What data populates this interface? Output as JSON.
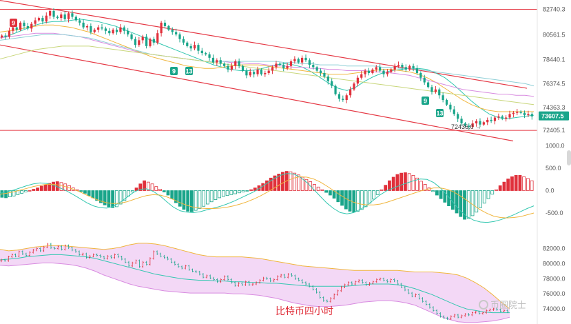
{
  "caption": "比特币四小时",
  "watermark": "币圈院士",
  "colors": {
    "up": "#e0303b",
    "down": "#1aa58a",
    "channel": "#e53945",
    "ma_short": "#33c7b0",
    "ma_mid": "#f0b53c",
    "ma_long": "#d88be0",
    "ma_xlong": "#8ecfd6",
    "ma_yellowgreen": "#c8d67a",
    "boll_fill": "#f3d8f6",
    "boll_upper": "#f0b53c",
    "boll_lower": "#d88be0",
    "boll_mid": "#33c7b0",
    "price_tag_bg": "#1aa58a",
    "td_marker": "#1aa58a"
  },
  "price_axis": {
    "ticks": [
      "82740.3",
      "80561.5",
      "78440.1",
      "76374.5",
      "74363.3",
      "72405.1"
    ],
    "current_price": "73607.5",
    "low_annotation": "72436.0 →"
  },
  "macd_axis": {
    "ticks": [
      "1000.0",
      "500.0",
      "0.0",
      "-500.0"
    ]
  },
  "boll_axis": {
    "ticks": [
      "82000.0",
      "80000.0",
      "78000.0",
      "76000.0",
      "74000.0"
    ]
  },
  "td_markers": [
    "9",
    "9",
    "13",
    "9",
    "13"
  ],
  "chart_data": [
    {
      "type": "candlestick",
      "panel": "price",
      "ylim": [
        72000,
        83300
      ],
      "horizontal_levels": [
        82740.3,
        72405.1
      ],
      "channel": {
        "upper_start": 83500,
        "upper_end": 76000,
        "lower_start": 79700,
        "lower_end": 71500
      },
      "close": [
        80500,
        80400,
        80900,
        81200,
        81000,
        81600,
        81300,
        81100,
        81500,
        81800,
        82000,
        81700,
        82200,
        82600,
        82100,
        82000,
        82300,
        81900,
        82400,
        82100,
        81800,
        81600,
        81200,
        81300,
        80800,
        81000,
        81200,
        81100,
        80900,
        80700,
        81000,
        80800,
        81200,
        80900,
        80600,
        80200,
        79700,
        80100,
        80400,
        79600,
        80200,
        79900,
        80700,
        81600,
        81300,
        81000,
        80800,
        80600,
        80200,
        79900,
        79600,
        79400,
        79700,
        79200,
        79000,
        78900,
        78600,
        78200,
        78400,
        78100,
        77900,
        77600,
        77900,
        78300,
        77900,
        77500,
        77100,
        77400,
        77200,
        77600,
        77200,
        77300,
        77500,
        77800,
        78100,
        78000,
        77700,
        77900,
        78300,
        78500,
        78200,
        78600,
        78400,
        78000,
        77800,
        77500,
        77300,
        77000,
        76600,
        76200,
        75500,
        75100,
        75000,
        75400,
        75900,
        76400,
        76900,
        77200,
        77500,
        77300,
        77600,
        77800,
        77500,
        77200,
        77400,
        77600,
        77900,
        78000,
        77800,
        77600,
        77900,
        77700,
        77300,
        76900,
        76500,
        76100,
        75700,
        75900,
        75400,
        75000,
        74600,
        74200,
        73800,
        73400,
        73000,
        72800,
        72700,
        73000,
        73200,
        72900,
        73100,
        73300,
        73200,
        73500,
        73600,
        73400,
        73500,
        73800,
        73900,
        74000,
        73900,
        73700,
        73800,
        73600
      ],
      "ma": {
        "short": [
          80300,
          80500,
          80800,
          81100,
          81400,
          81600,
          81700,
          81700,
          81800,
          81900,
          81800,
          81700,
          81500,
          81300,
          81000,
          80700,
          80400,
          80100,
          79800,
          79500,
          79200,
          78900,
          78600,
          78300,
          78000,
          77800,
          77600,
          77500,
          77500,
          77600,
          77800,
          78000,
          78100,
          78000,
          77800,
          77400,
          76900,
          76400,
          76000,
          75800,
          76100,
          76600,
          77000,
          77300,
          77500,
          77600,
          77700,
          77700,
          77600,
          77300,
          76900,
          76300,
          75600,
          74900,
          74300,
          73800,
          73500,
          73400,
          73500,
          73600,
          73700
        ],
        "mid": [
          80800,
          80900,
          81000,
          81200,
          81300,
          81400,
          81400,
          81300,
          81200,
          81000,
          80800,
          80500,
          80200,
          79900,
          79600,
          79300,
          79000,
          78700,
          78500,
          78300,
          78100,
          77900,
          77800,
          77700,
          77700,
          77800,
          77900,
          78000,
          78000,
          78000,
          77900,
          77800,
          77700,
          77600,
          77500,
          77400,
          77300,
          77200,
          77200,
          77200,
          77300,
          77400,
          77500,
          77600,
          77600,
          77500,
          77400,
          77200,
          76900,
          76500,
          76000,
          75500,
          75000,
          74600,
          74300,
          74100,
          74000,
          74000,
          74000,
          74000,
          74000
        ],
        "long": [
          80300,
          80400,
          80500,
          80600,
          80700,
          80700,
          80700,
          80600,
          80500,
          80400,
          80200,
          80000,
          79800,
          79600,
          79400,
          79200,
          79000,
          78900,
          78800,
          78700,
          78600,
          78500,
          78400,
          78300,
          78300,
          78300,
          78200,
          78200,
          78100,
          78100,
          78000,
          77900,
          77900,
          77800,
          77800,
          77700,
          77700,
          77600,
          77600,
          77500,
          77500,
          77500,
          77400,
          77400,
          77300,
          77200,
          77100,
          76900,
          76700,
          76500,
          76300,
          76100,
          75900,
          75800,
          75700,
          75600,
          75500,
          75500,
          75400,
          75400,
          75300
        ],
        "xlong": [
          80100,
          80200,
          80300,
          80400,
          80500,
          80600,
          80600,
          80600,
          80500,
          80400,
          80300,
          80100,
          79900,
          79700,
          79500,
          79300,
          79100,
          78900,
          78800,
          78700,
          78600,
          78500,
          78400,
          78300,
          78300,
          78300,
          78300,
          78300,
          78300,
          78300,
          78300,
          78300,
          78200,
          78200,
          78100,
          78100,
          78000,
          78000,
          78000,
          77900,
          77900,
          77900,
          77900,
          77800,
          77800,
          77700,
          77700,
          77600,
          77500,
          77400,
          77300,
          77200,
          77100,
          77000,
          76900,
          76800,
          76700,
          76600,
          76500,
          76400,
          76200
        ],
        "yellowgreen": [
          78500,
          78700,
          78900,
          79100,
          79300,
          79400,
          79500,
          79600,
          79600,
          79600,
          79600,
          79500,
          79400,
          79300,
          79200,
          79100,
          79000,
          78900,
          78800,
          78700,
          78600,
          78500,
          78400,
          78300,
          78200,
          78100,
          78000,
          77900,
          77800,
          77700,
          77600,
          77500,
          77400,
          77300,
          77200,
          77100,
          77000,
          76900,
          76800,
          76700,
          76600,
          76500,
          76400,
          76300,
          76200,
          76100,
          76000,
          75900,
          75800,
          75700,
          75600,
          75500,
          75400,
          75300,
          75200,
          75100,
          75000,
          74900,
          74800,
          74700,
          74600
        ]
      }
    },
    {
      "type": "bar",
      "panel": "macd",
      "ylim": [
        -900,
        1100
      ],
      "histogram": [
        -150,
        -160,
        -140,
        -120,
        -90,
        -60,
        -30,
        0,
        30,
        60,
        100,
        130,
        160,
        190,
        200,
        180,
        150,
        110,
        60,
        20,
        -20,
        -60,
        -110,
        -160,
        -220,
        -270,
        -320,
        -360,
        -380,
        -360,
        -300,
        -220,
        -120,
        -30,
        60,
        150,
        220,
        190,
        150,
        90,
        30,
        -30,
        -100,
        -180,
        -270,
        -350,
        -420,
        -460,
        -470,
        -440,
        -400,
        -350,
        -300,
        -250,
        -200,
        -160,
        -130,
        -110,
        -90,
        -70,
        -50,
        -30,
        -10,
        20,
        60,
        110,
        160,
        220,
        280,
        330,
        370,
        410,
        430,
        420,
        390,
        350,
        300,
        250,
        200,
        140,
        80,
        20,
        -40,
        -100,
        -170,
        -250,
        -330,
        -410,
        -460,
        -480,
        -460,
        -420,
        -360,
        -280,
        -190,
        -90,
        20,
        120,
        220,
        300,
        360,
        390,
        400,
        380,
        340,
        280,
        210,
        140,
        60,
        -20,
        -100,
        -180,
        -260,
        -340,
        -420,
        -500,
        -580,
        -640,
        -620,
        -560,
        -480,
        -380,
        -280,
        -180,
        -80,
        20,
        110,
        190,
        260,
        310,
        340,
        340,
        310,
        270,
        220
      ],
      "dif": [
        -60,
        -30,
        10,
        60,
        110,
        150,
        170,
        160,
        120,
        60,
        -10,
        -90,
        -180,
        -270,
        -340,
        -380,
        -390,
        -350,
        -260,
        -150,
        -40,
        30,
        40,
        -20,
        -120,
        -250,
        -370,
        -450,
        -480,
        -490,
        -470,
        -430,
        -390,
        -350,
        -300,
        -240,
        -170,
        -100,
        -30,
        60,
        160,
        260,
        340,
        380,
        370,
        300,
        180,
        30,
        -130,
        -280,
        -400,
        -490,
        -520,
        -490,
        -420,
        -330,
        -210,
        -90,
        0,
        60,
        120,
        170,
        220,
        260,
        250,
        180,
        60,
        -100,
        -280,
        -450,
        -580,
        -660,
        -700,
        -710,
        -690,
        -650,
        -600,
        -540,
        -470,
        -400,
        -340
      ],
      "dea": [
        -80,
        -60,
        -30,
        10,
        50,
        90,
        120,
        140,
        140,
        120,
        80,
        30,
        -30,
        -100,
        -170,
        -230,
        -270,
        -290,
        -280,
        -250,
        -200,
        -150,
        -110,
        -90,
        -100,
        -140,
        -200,
        -270,
        -330,
        -370,
        -390,
        -400,
        -400,
        -390,
        -370,
        -340,
        -300,
        -250,
        -190,
        -120,
        -40,
        50,
        140,
        220,
        280,
        310,
        300,
        260,
        190,
        100,
        0,
        -100,
        -190,
        -260,
        -300,
        -320,
        -320,
        -300,
        -260,
        -210,
        -160,
        -110,
        -60,
        -10,
        30,
        60,
        60,
        30,
        -30,
        -120,
        -220,
        -330,
        -430,
        -510,
        -570,
        -600,
        -610,
        -600,
        -580,
        -540,
        -500
      ]
    },
    {
      "type": "area",
      "panel": "boll",
      "ylim": [
        72000,
        83700
      ],
      "upper": [
        81900,
        81700,
        81800,
        82000,
        82200,
        82300,
        82400,
        82400,
        82300,
        82200,
        82100,
        82000,
        81900,
        82000,
        82200,
        82500,
        82700,
        82700,
        82600,
        82400,
        82100,
        81800,
        81500,
        81200,
        81000,
        80900,
        80900,
        80900,
        80900,
        80800,
        80700,
        80500,
        80300,
        80100,
        79900,
        79700,
        79600,
        79500,
        79400,
        79300,
        79200,
        79100,
        79100,
        79100,
        79100,
        79100,
        79100,
        79000,
        78900,
        78900,
        78900,
        78800,
        78700,
        78500,
        78100,
        77500,
        76800,
        75900,
        74900,
        74000
      ],
      "mid": [
        80500,
        80600,
        80700,
        80900,
        81000,
        81100,
        81200,
        81200,
        81100,
        81000,
        80900,
        80700,
        80400,
        80100,
        79800,
        79500,
        79200,
        78900,
        78600,
        78400,
        78200,
        78000,
        77900,
        77800,
        77800,
        77700,
        77700,
        77600,
        77600,
        77500,
        77500,
        77400,
        77400,
        77300,
        77200,
        77100,
        77000,
        77000,
        77000,
        77000,
        77000,
        77100,
        77200,
        77300,
        77300,
        77300,
        77200,
        77000,
        76700,
        76300,
        75900,
        75400,
        74900,
        74400,
        74000,
        73800,
        73600,
        73500,
        73500,
        73500
      ],
      "lower": [
        79800,
        79700,
        79800,
        79900,
        80000,
        80100,
        80100,
        80000,
        79900,
        79700,
        79400,
        79000,
        78500,
        78100,
        77700,
        77300,
        77000,
        76800,
        76600,
        76400,
        76300,
        76200,
        76100,
        76100,
        76100,
        76100,
        76100,
        76000,
        76000,
        75900,
        75800,
        75600,
        75400,
        75100,
        74800,
        74600,
        74400,
        74300,
        74300,
        74400,
        74500,
        74700,
        74900,
        75000,
        75100,
        75100,
        75000,
        74800,
        74500,
        74000,
        73500,
        73000,
        72600,
        72300,
        72200,
        72200,
        72300,
        72400,
        72600,
        72900
      ]
    }
  ]
}
